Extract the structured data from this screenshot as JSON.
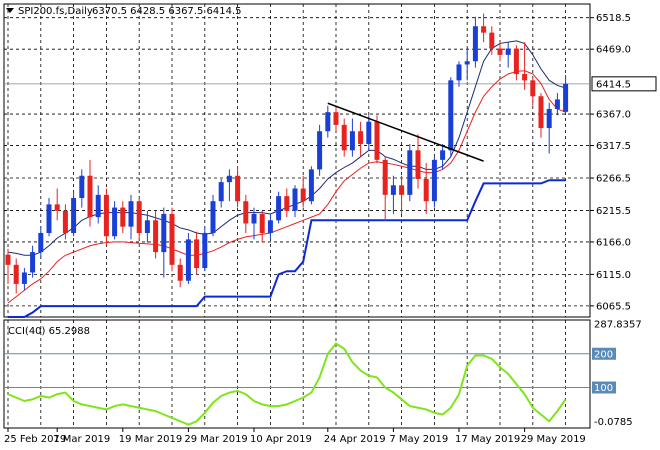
{
  "header": {
    "symbol_label": "SPI200.fs,Daily",
    "ohlc_label": "6370.5 6428.5 6367.5 6414.5"
  },
  "cci_header": {
    "label": "CCI(40) 65.2988"
  },
  "colors": {
    "bull": "#1a3fd6",
    "bear": "#e8221e",
    "ma_fast": "#1e2a7a",
    "ma_slow": "#e8221e",
    "stop": "#0b2ad6",
    "trendline": "#000000",
    "cci": "#7fe51a",
    "grid": "#000000",
    "level_line": "#5a8ab8"
  },
  "chart_data": [
    {
      "type": "candlestick",
      "title": "SPI200.fs,Daily",
      "ylim": [
        6048,
        6540
      ],
      "grid": true,
      "y_ticks": [
        "6518.5",
        "6469.0",
        "6367.0",
        "6317.5",
        "6266.5",
        "6215.5",
        "6166.0",
        "6115.0",
        "6065.5"
      ],
      "price_marker": "6414.5",
      "x_ticks": [
        {
          "label": "25 Feb 2019",
          "bar": 0
        },
        {
          "label": "7 Mar 2019",
          "bar": 6
        },
        {
          "label": "19 Mar 2019",
          "bar": 14
        },
        {
          "label": "29 Mar 2019",
          "bar": 22
        },
        {
          "label": "10 Apr 2019",
          "bar": 30
        },
        {
          "label": "24 Apr 2019",
          "bar": 39
        },
        {
          "label": "7 May 2019",
          "bar": 47
        },
        {
          "label": "17 May 2019",
          "bar": 55
        },
        {
          "label": "29 May 2019",
          "bar": 63
        }
      ],
      "candles": [
        [
          6146,
          6155,
          6100,
          6130
        ],
        [
          6130,
          6140,
          6085,
          6100
        ],
        [
          6100,
          6125,
          6090,
          6118
        ],
        [
          6118,
          6160,
          6110,
          6150
        ],
        [
          6150,
          6190,
          6140,
          6180
        ],
        [
          6180,
          6235,
          6175,
          6225
        ],
        [
          6225,
          6250,
          6200,
          6215
        ],
        [
          6215,
          6225,
          6170,
          6180
        ],
        [
          6180,
          6245,
          6175,
          6235
        ],
        [
          6235,
          6280,
          6220,
          6270
        ],
        [
          6270,
          6295,
          6190,
          6205
        ],
        [
          6205,
          6255,
          6195,
          6240
        ],
        [
          6240,
          6250,
          6160,
          6175
        ],
        [
          6175,
          6230,
          6170,
          6220
        ],
        [
          6220,
          6230,
          6180,
          6190
        ],
        [
          6190,
          6240,
          6170,
          6230
        ],
        [
          6230,
          6235,
          6170,
          6180
        ],
        [
          6180,
          6215,
          6165,
          6200
        ],
        [
          6200,
          6215,
          6140,
          6150
        ],
        [
          6150,
          6220,
          6110,
          6210
        ],
        [
          6210,
          6220,
          6120,
          6130
        ],
        [
          6130,
          6140,
          6095,
          6105
        ],
        [
          6105,
          6180,
          6100,
          6170
        ],
        [
          6170,
          6182,
          6115,
          6125
        ],
        [
          6125,
          6190,
          6120,
          6180
        ],
        [
          6180,
          6240,
          6175,
          6230
        ],
        [
          6230,
          6265,
          6220,
          6260
        ],
        [
          6260,
          6280,
          6230,
          6270
        ],
        [
          6270,
          6285,
          6220,
          6230
        ],
        [
          6230,
          6240,
          6180,
          6195
        ],
        [
          6195,
          6220,
          6170,
          6210
        ],
        [
          6210,
          6215,
          6165,
          6180
        ],
        [
          6180,
          6210,
          6170,
          6200
        ],
        [
          6200,
          6245,
          6195,
          6238
        ],
        [
          6238,
          6250,
          6205,
          6215
        ],
        [
          6215,
          6255,
          6205,
          6250
        ],
        [
          6250,
          6270,
          6220,
          6230
        ],
        [
          6230,
          6285,
          6225,
          6280
        ],
        [
          6280,
          6350,
          6270,
          6340
        ],
        [
          6340,
          6380,
          6330,
          6370
        ],
        [
          6370,
          6380,
          6340,
          6350
        ],
        [
          6350,
          6360,
          6300,
          6310
        ],
        [
          6310,
          6360,
          6300,
          6340
        ],
        [
          6340,
          6355,
          6300,
          6320
        ],
        [
          6320,
          6365,
          6310,
          6355
        ],
        [
          6355,
          6365,
          6290,
          6295
        ],
        [
          6295,
          6300,
          6200,
          6240
        ],
        [
          6240,
          6270,
          6210,
          6255
        ],
        [
          6255,
          6270,
          6210,
          6240
        ],
        [
          6240,
          6320,
          6230,
          6310
        ],
        [
          6310,
          6335,
          6250,
          6265
        ],
        [
          6265,
          6290,
          6210,
          6230
        ],
        [
          6230,
          6300,
          6220,
          6295
        ],
        [
          6295,
          6320,
          6280,
          6310
        ],
        [
          6310,
          6425,
          6300,
          6420
        ],
        [
          6420,
          6450,
          6410,
          6445
        ],
        [
          6445,
          6470,
          6420,
          6450
        ],
        [
          6450,
          6520,
          6440,
          6505
        ],
        [
          6505,
          6525,
          6480,
          6495
        ],
        [
          6495,
          6505,
          6460,
          6470
        ],
        [
          6470,
          6480,
          6450,
          6460
        ],
        [
          6460,
          6480,
          6440,
          6470
        ],
        [
          6470,
          6475,
          6420,
          6430
        ],
        [
          6430,
          6480,
          6405,
          6420
        ],
        [
          6420,
          6425,
          6380,
          6395
        ],
        [
          6395,
          6400,
          6330,
          6345
        ],
        [
          6345,
          6385,
          6305,
          6375
        ],
        [
          6375,
          6400,
          6365,
          6390
        ],
        [
          6370.5,
          6428.5,
          6367.5,
          6414.5
        ]
      ],
      "series": [
        {
          "id": "ma_fast",
          "values": [
            6150,
            6148,
            6145,
            6145,
            6150,
            6160,
            6172,
            6180,
            6188,
            6200,
            6206,
            6210,
            6212,
            6212,
            6212,
            6212,
            6210,
            6208,
            6204,
            6200,
            6195,
            6188,
            6185,
            6180,
            6178,
            6180,
            6190,
            6200,
            6208,
            6212,
            6212,
            6212,
            6210,
            6215,
            6220,
            6225,
            6230,
            6238,
            6250,
            6265,
            6275,
            6283,
            6290,
            6300,
            6310,
            6310,
            6300,
            6296,
            6290,
            6285,
            6285,
            6280,
            6280,
            6285,
            6300,
            6330,
            6370,
            6410,
            6450,
            6470,
            6478,
            6480,
            6482,
            6478,
            6460,
            6438,
            6420,
            6412,
            6408
          ]
        },
        {
          "id": "ma_slow",
          "values": [
            6070,
            6080,
            6090,
            6100,
            6108,
            6120,
            6135,
            6145,
            6150,
            6155,
            6160,
            6163,
            6165,
            6166,
            6166,
            6165,
            6164,
            6163,
            6162,
            6160,
            6155,
            6150,
            6145,
            6145,
            6148,
            6152,
            6158,
            6165,
            6170,
            6174,
            6176,
            6178,
            6180,
            6185,
            6190,
            6195,
            6200,
            6205,
            6210,
            6225,
            6245,
            6262,
            6272,
            6282,
            6290,
            6292,
            6290,
            6288,
            6285,
            6282,
            6278,
            6275,
            6275,
            6280,
            6290,
            6310,
            6340,
            6370,
            6395,
            6410,
            6422,
            6430,
            6434,
            6435,
            6430,
            6415,
            6390,
            6375,
            6370
          ]
        },
        {
          "id": "stop_line",
          "values": [
            6048,
            6048,
            6048,
            6055,
            6065,
            6065,
            6065,
            6065,
            6065,
            6065,
            6065,
            6065,
            6065,
            6065,
            6065,
            6065,
            6065,
            6065,
            6065,
            6065,
            6065,
            6065,
            6065,
            6065,
            6080,
            6080,
            6080,
            6080,
            6080,
            6080,
            6080,
            6080,
            6080,
            6115,
            6120,
            6120,
            6135,
            6200,
            6200,
            6200,
            6200,
            6200,
            6200,
            6200,
            6200,
            6200,
            6200,
            6200,
            6200,
            6200,
            6200,
            6200,
            6200,
            6200,
            6200,
            6200,
            6200,
            6230,
            6258,
            6258,
            6258,
            6258,
            6258,
            6258,
            6258,
            6258,
            6263,
            6263,
            6263
          ]
        },
        {
          "id": "trendline",
          "points": [
            [
              39,
              6384
            ],
            [
              58,
              6293
            ]
          ]
        }
      ]
    },
    {
      "type": "line",
      "title": "CCI(40) 65.2988",
      "ylim": [
        -20,
        300
      ],
      "y_ticks": [
        "287.8357",
        "200",
        "100",
        "-0.0785"
      ],
      "levels": [
        200,
        100
      ],
      "series": [
        {
          "name": "CCI(40)",
          "values": [
            80,
            70,
            60,
            65,
            75,
            70,
            80,
            85,
            60,
            50,
            45,
            40,
            35,
            45,
            50,
            45,
            40,
            35,
            30,
            20,
            10,
            0,
            -10,
            0,
            25,
            55,
            75,
            85,
            90,
            80,
            60,
            50,
            45,
            45,
            50,
            60,
            70,
            85,
            130,
            200,
            230,
            215,
            175,
            150,
            135,
            130,
            100,
            85,
            65,
            45,
            40,
            35,
            25,
            20,
            40,
            80,
            165,
            195,
            195,
            185,
            160,
            140,
            110,
            80,
            40,
            20,
            0,
            30,
            65
          ]
        }
      ]
    }
  ]
}
